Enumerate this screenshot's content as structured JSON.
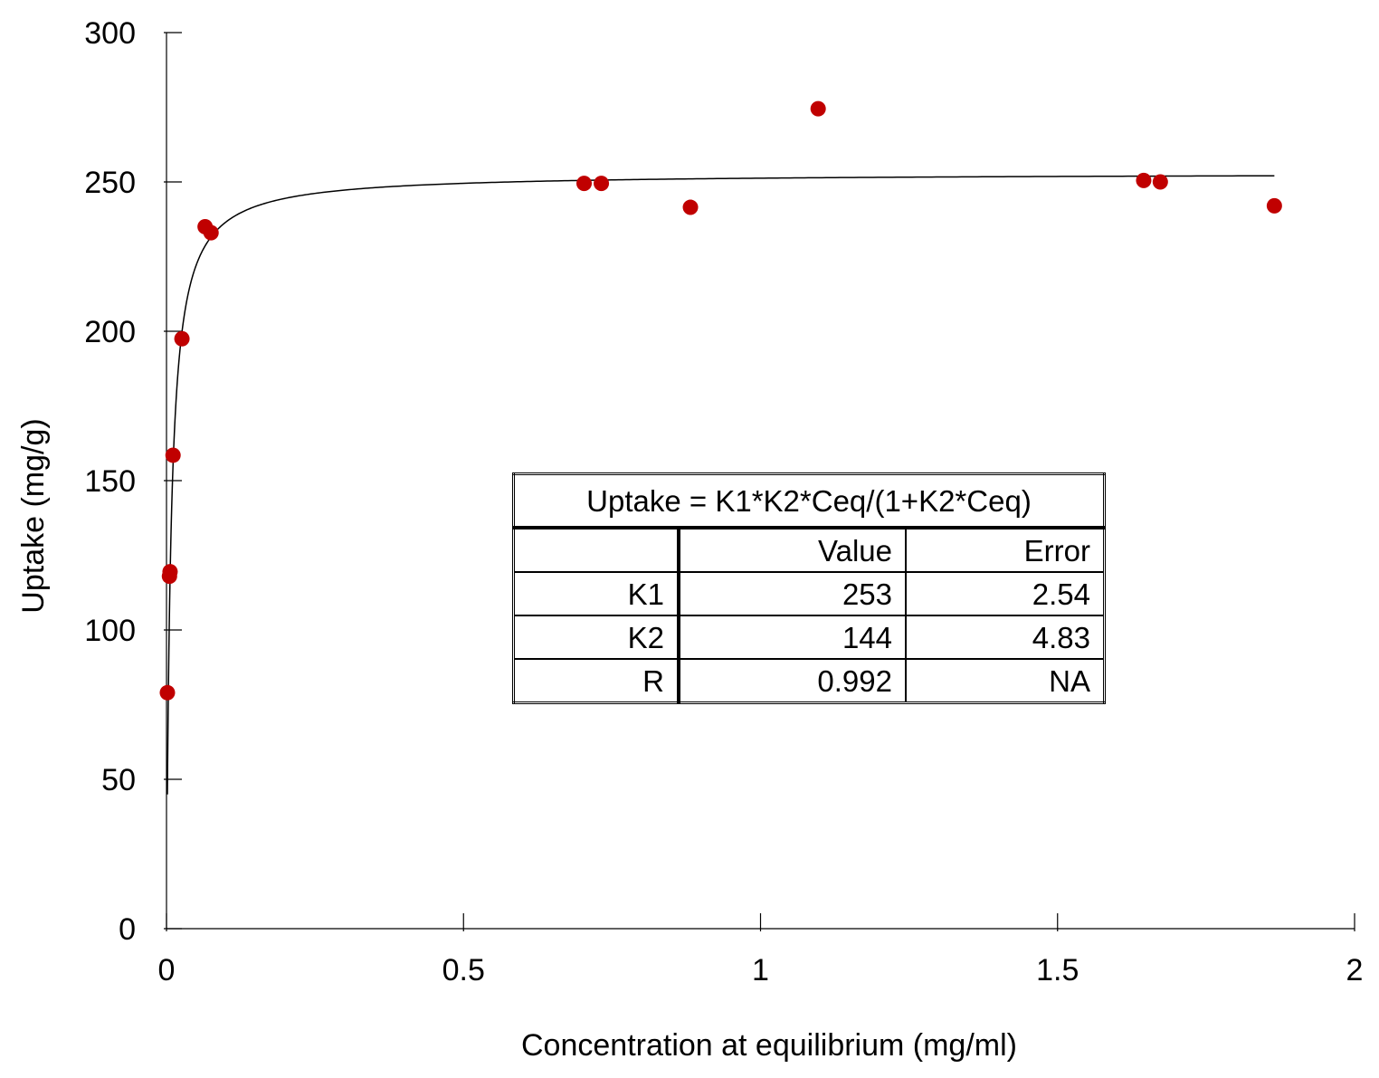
{
  "chart_data": {
    "type": "scatter",
    "xlabel": "Concentration at equilibrium (mg/ml)",
    "ylabel": "Uptake (mg/g)",
    "xlim": [
      0,
      2
    ],
    "ylim": [
      0,
      300
    ],
    "x_ticks": [
      "0",
      "0.5",
      "1",
      "1.5",
      "2"
    ],
    "y_ticks": [
      "0",
      "50",
      "100",
      "150",
      "200",
      "250",
      "300"
    ],
    "grid": false,
    "marker_color": "#C00000",
    "series": [
      {
        "points": [
          {
            "x": 0.0015,
            "y": 79
          },
          {
            "x": 0.005,
            "y": 118
          },
          {
            "x": 0.006,
            "y": 119.5
          },
          {
            "x": 0.011,
            "y": 158.5
          },
          {
            "x": 0.026,
            "y": 197.5
          },
          {
            "x": 0.065,
            "y": 235
          },
          {
            "x": 0.075,
            "y": 233
          },
          {
            "x": 0.703,
            "y": 249.5
          },
          {
            "x": 0.732,
            "y": 249.5
          },
          {
            "x": 0.882,
            "y": 241.5
          },
          {
            "x": 1.097,
            "y": 274.5
          },
          {
            "x": 1.645,
            "y": 250.5
          },
          {
            "x": 1.673,
            "y": 250
          },
          {
            "x": 1.865,
            "y": 242
          }
        ]
      }
    ],
    "fit_curve": {
      "model": "langmuir",
      "K1": 253,
      "K2": 144,
      "x_range": [
        0.0015,
        1.865
      ],
      "color": "#000000"
    },
    "fit_table": {
      "equation": "Uptake = K1*K2*Ceq/(1+K2*Ceq)",
      "header": [
        "",
        "Value",
        "Error"
      ],
      "rows": [
        [
          "K1",
          "253",
          "2.54"
        ],
        [
          "K2",
          "144",
          "4.83"
        ],
        [
          "R",
          "0.992",
          "NA"
        ]
      ]
    }
  }
}
